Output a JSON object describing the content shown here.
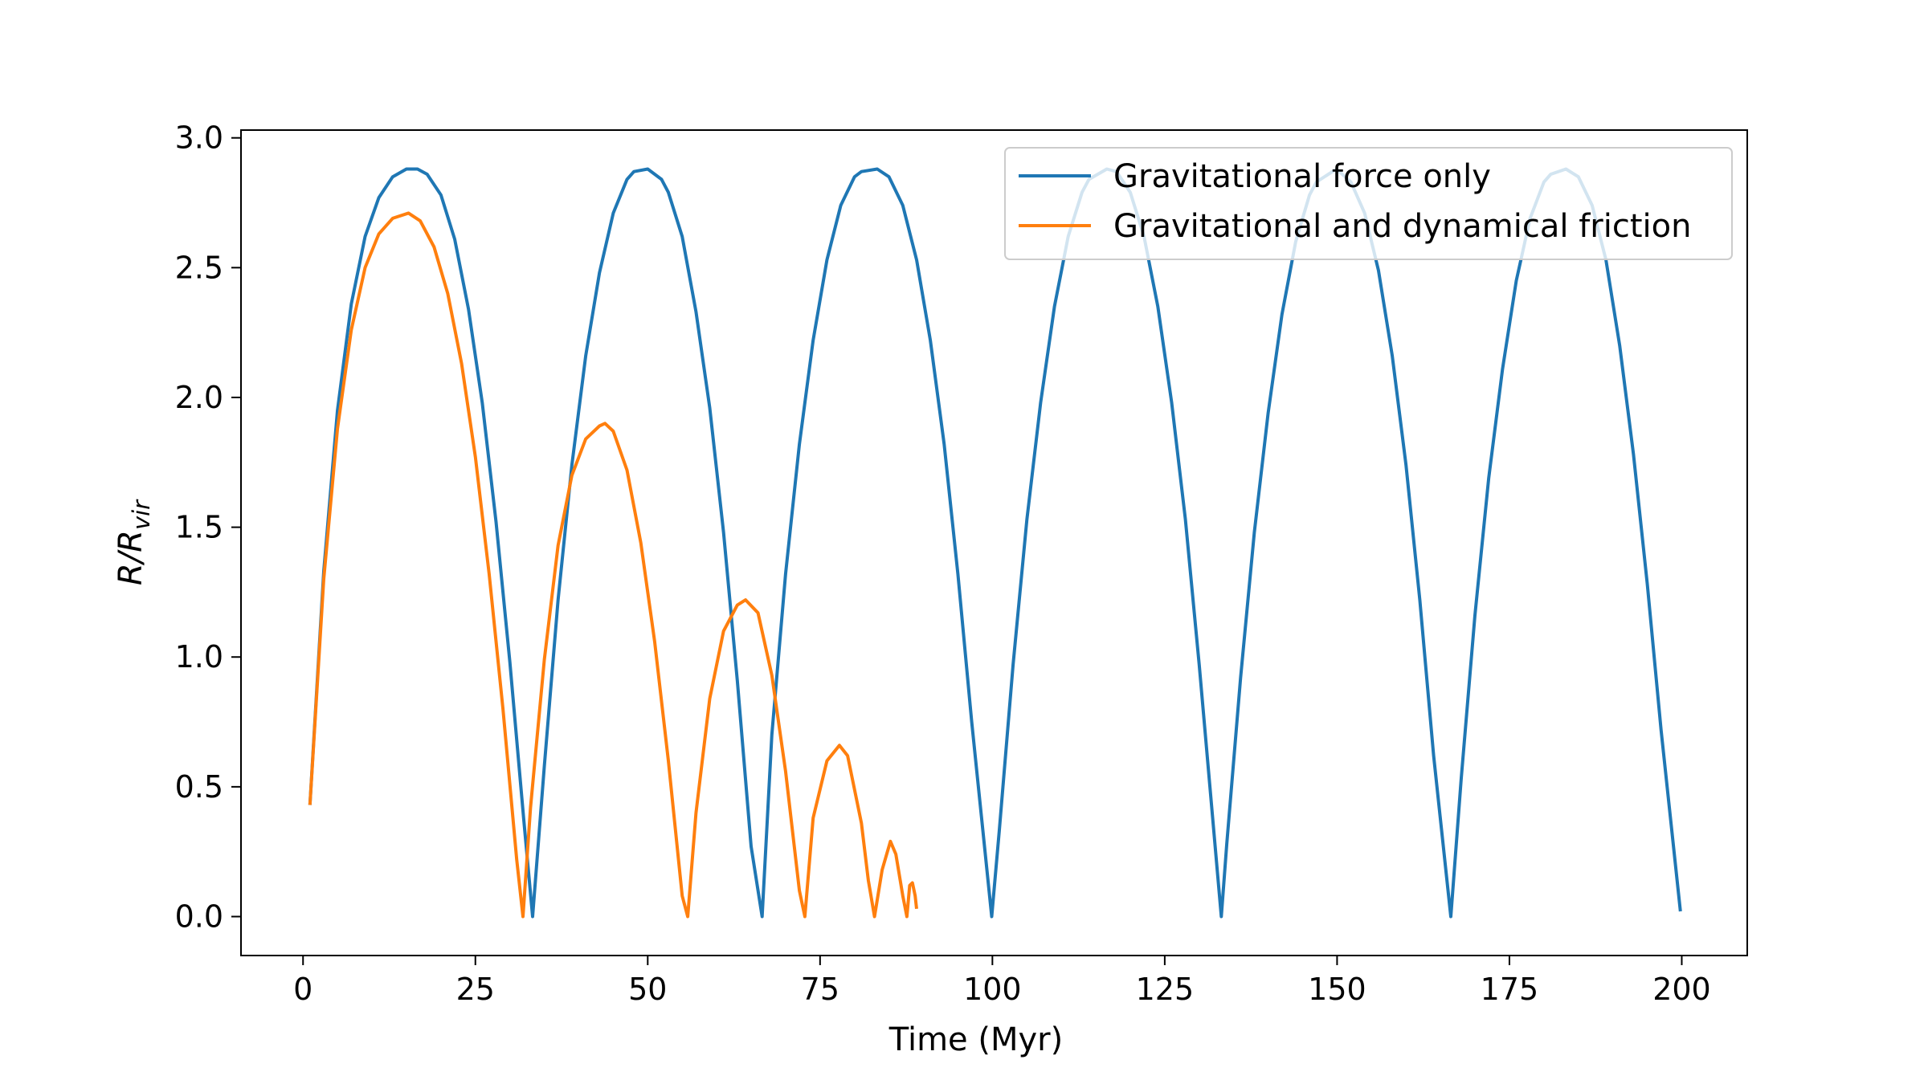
{
  "chart_data": {
    "type": "line",
    "title": "",
    "xlabel": "Time (Myr)",
    "ylabel": {
      "main": "R/R",
      "sub": "vir"
    },
    "xlim": [
      -9,
      209.5
    ],
    "ylim": [
      -0.15,
      3.03
    ],
    "xticks": [
      0,
      25,
      50,
      75,
      100,
      125,
      150,
      175,
      200
    ],
    "yticks": [
      0.0,
      0.5,
      1.0,
      1.5,
      2.0,
      2.5,
      3.0
    ],
    "xtick_labels": [
      "0",
      "25",
      "50",
      "75",
      "100",
      "125",
      "150",
      "175",
      "200"
    ],
    "ytick_labels": [
      "0.0",
      "0.5",
      "1.0",
      "1.5",
      "2.0",
      "2.5",
      "3.0"
    ],
    "grid": false,
    "legend_position": "top-right",
    "series": [
      {
        "name": "Gravitational force only",
        "color": "#1f77b4",
        "x": [
          1.0,
          3.0,
          5.0,
          7.0,
          9.0,
          11.0,
          13.0,
          15.0,
          16.6,
          18.0,
          20.0,
          22.0,
          24.0,
          26.0,
          28.0,
          30.0,
          32.0,
          33.3,
          35.0,
          37.0,
          39.0,
          41.0,
          43.0,
          45.0,
          47.0,
          48.0,
          50.0,
          52.0,
          53.0,
          55.0,
          57.0,
          59.0,
          61.0,
          63.0,
          65.0,
          66.6,
          68.0,
          70.0,
          72.0,
          74.0,
          76.0,
          78.0,
          80.0,
          81.0,
          83.3,
          85.0,
          87.0,
          89.0,
          91.0,
          93.0,
          95.0,
          97.0,
          99.9,
          101.0,
          103.0,
          105.0,
          107.0,
          109.0,
          111.0,
          113.0,
          114.0,
          116.6,
          118.0,
          120.0,
          122.0,
          124.0,
          126.0,
          128.0,
          130.0,
          133.2,
          134.0,
          136.0,
          138.0,
          140.0,
          142.0,
          144.0,
          146.0,
          147.0,
          149.9,
          152.0,
          154.0,
          156.0,
          158.0,
          160.0,
          162.0,
          164.0,
          166.5,
          168.0,
          170.0,
          172.0,
          174.0,
          176.0,
          178.0,
          180.0,
          181.0,
          183.2,
          185.0,
          187.0,
          189.0,
          191.0,
          193.0,
          195.0,
          197.0,
          199.8
        ],
        "y": [
          0.43,
          1.33,
          1.95,
          2.36,
          2.62,
          2.77,
          2.85,
          2.88,
          2.88,
          2.86,
          2.78,
          2.61,
          2.34,
          1.98,
          1.52,
          0.98,
          0.38,
          0.0,
          0.58,
          1.22,
          1.74,
          2.16,
          2.48,
          2.71,
          2.84,
          2.87,
          2.88,
          2.84,
          2.79,
          2.62,
          2.33,
          1.96,
          1.48,
          0.91,
          0.27,
          0.0,
          0.7,
          1.32,
          1.82,
          2.22,
          2.53,
          2.74,
          2.85,
          2.87,
          2.88,
          2.85,
          2.74,
          2.53,
          2.22,
          1.82,
          1.32,
          0.75,
          0.0,
          0.33,
          0.97,
          1.53,
          1.98,
          2.35,
          2.62,
          2.79,
          2.84,
          2.88,
          2.87,
          2.79,
          2.62,
          2.35,
          1.98,
          1.53,
          0.97,
          0.0,
          0.28,
          0.92,
          1.48,
          1.94,
          2.32,
          2.6,
          2.78,
          2.83,
          2.88,
          2.83,
          2.71,
          2.49,
          2.16,
          1.74,
          1.22,
          0.62,
          0.0,
          0.53,
          1.16,
          1.69,
          2.11,
          2.45,
          2.69,
          2.83,
          2.86,
          2.88,
          2.85,
          2.74,
          2.53,
          2.2,
          1.78,
          1.28,
          0.72,
          0.02
        ]
      },
      {
        "name": "Gravitational and dynamical friction",
        "color": "#ff7f0e",
        "x": [
          1.0,
          3.0,
          5.0,
          7.0,
          9.0,
          11.0,
          13.0,
          15.3,
          17.0,
          19.0,
          21.0,
          23.0,
          25.0,
          27.0,
          29.0,
          31.0,
          31.9,
          33.0,
          35.0,
          37.0,
          39.0,
          41.0,
          43.0,
          43.8,
          45.0,
          47.0,
          49.0,
          51.0,
          53.0,
          55.0,
          55.8,
          57.0,
          59.0,
          61.0,
          63.0,
          64.2,
          66.0,
          68.0,
          70.0,
          72.0,
          72.8,
          74.0,
          76.0,
          77.8,
          79.0,
          81.0,
          82.0,
          82.9,
          84.0,
          85.2,
          86.0,
          87.0,
          87.6,
          88.0,
          88.4,
          88.8,
          89.0
        ],
        "y": [
          0.43,
          1.3,
          1.88,
          2.26,
          2.5,
          2.63,
          2.69,
          2.71,
          2.68,
          2.58,
          2.4,
          2.13,
          1.77,
          1.32,
          0.8,
          0.22,
          0.0,
          0.42,
          0.99,
          1.43,
          1.7,
          1.84,
          1.89,
          1.9,
          1.87,
          1.72,
          1.44,
          1.06,
          0.6,
          0.08,
          0.0,
          0.4,
          0.84,
          1.1,
          1.2,
          1.22,
          1.17,
          0.93,
          0.56,
          0.1,
          0.0,
          0.38,
          0.6,
          0.66,
          0.62,
          0.36,
          0.14,
          0.0,
          0.18,
          0.29,
          0.24,
          0.08,
          0.0,
          0.12,
          0.13,
          0.08,
          0.03
        ]
      }
    ]
  }
}
